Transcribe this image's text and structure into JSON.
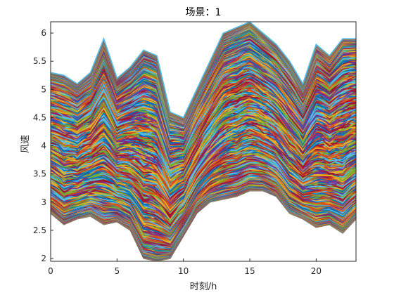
{
  "chart_data": {
    "type": "line",
    "title": "场景：1",
    "xlabel": "时刻/h",
    "ylabel": "风速",
    "xlim": [
      0,
      23
    ],
    "ylim": [
      1.95,
      6.2
    ],
    "xticks": [
      0,
      5,
      10,
      15,
      20
    ],
    "yticks": [
      2,
      2.5,
      3,
      3.5,
      4,
      4.5,
      5,
      5.5,
      6
    ],
    "grid": false,
    "legend": "none",
    "x": [
      0,
      1,
      2,
      3,
      4,
      5,
      6,
      7,
      8,
      9,
      10,
      11,
      12,
      13,
      14,
      15,
      16,
      17,
      18,
      19,
      20,
      21,
      22,
      23
    ],
    "envelope": {
      "upper": [
        5.3,
        5.25,
        5.1,
        5.3,
        5.9,
        5.2,
        5.4,
        5.7,
        5.6,
        4.6,
        4.5,
        5.0,
        5.5,
        6.0,
        6.1,
        6.2,
        6.0,
        5.8,
        5.5,
        5.1,
        5.8,
        5.6,
        5.9,
        5.9
      ],
      "lower": [
        2.8,
        2.6,
        2.7,
        2.75,
        2.6,
        2.65,
        2.5,
        2.0,
        1.95,
        2.0,
        2.4,
        2.8,
        3.0,
        3.05,
        3.1,
        3.2,
        3.2,
        3.1,
        2.8,
        2.7,
        2.55,
        2.6,
        2.45,
        2.7
      ]
    },
    "series_count": 1000,
    "series_colors": [
      "#0072bd",
      "#d95319",
      "#edb120",
      "#7e2f8e",
      "#77ac30",
      "#4dbeee",
      "#a2142f"
    ]
  }
}
